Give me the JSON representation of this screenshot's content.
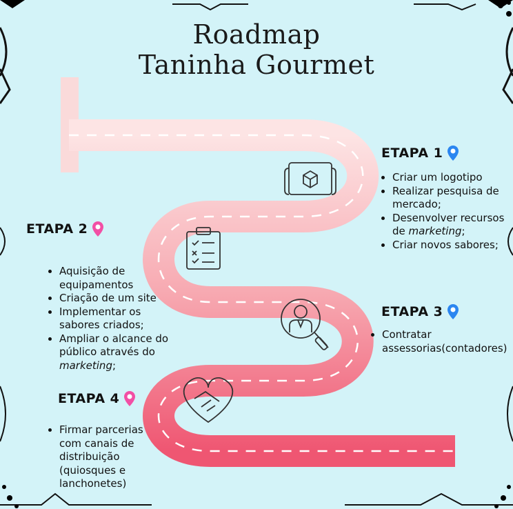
{
  "title": {
    "line1": "Roadmap",
    "line2": "Taninha Gourmet"
  },
  "colors": {
    "background": "#d3f3f8",
    "road_light": "#fde1e1",
    "road_dark": "#ef5b74",
    "pin_blue": "#2b86f0",
    "pin_pink": "#f24fa5"
  },
  "stages": [
    {
      "label": "ETAPA 1",
      "pin": "blue-location-pin-icon",
      "items": [
        "Criar um logotipo",
        "Realizar pesquisa de mercado;",
        "Desenvolver recursos de ",
        "Criar novos sabores;"
      ],
      "item3_italic": "marketing",
      "item3_tail": ";"
    },
    {
      "label": "ETAPA  2",
      "pin": "pink-location-pin-icon",
      "items": [
        "Aquisição de equipamentos",
        "Criação de um site",
        "Implementar os sabores criados;",
        "Ampliar o alcance do público através do "
      ],
      "item4_italic": "marketing",
      "item4_tail": ";"
    },
    {
      "label": "ETAPA 3",
      "pin": "blue-location-pin-icon",
      "items": [
        "Contratar assessorias(contadores)"
      ]
    },
    {
      "label": "ETAPA 4",
      "pin": "pink-location-pin-icon",
      "items": [
        "Firmar parcerias com canais de distribuição (quiosques e lanchonetes)"
      ]
    }
  ],
  "icons": [
    "map-blueprint-icon",
    "checklist-clipboard-icon",
    "consultant-magnifier-icon",
    "handshake-heart-icon"
  ]
}
